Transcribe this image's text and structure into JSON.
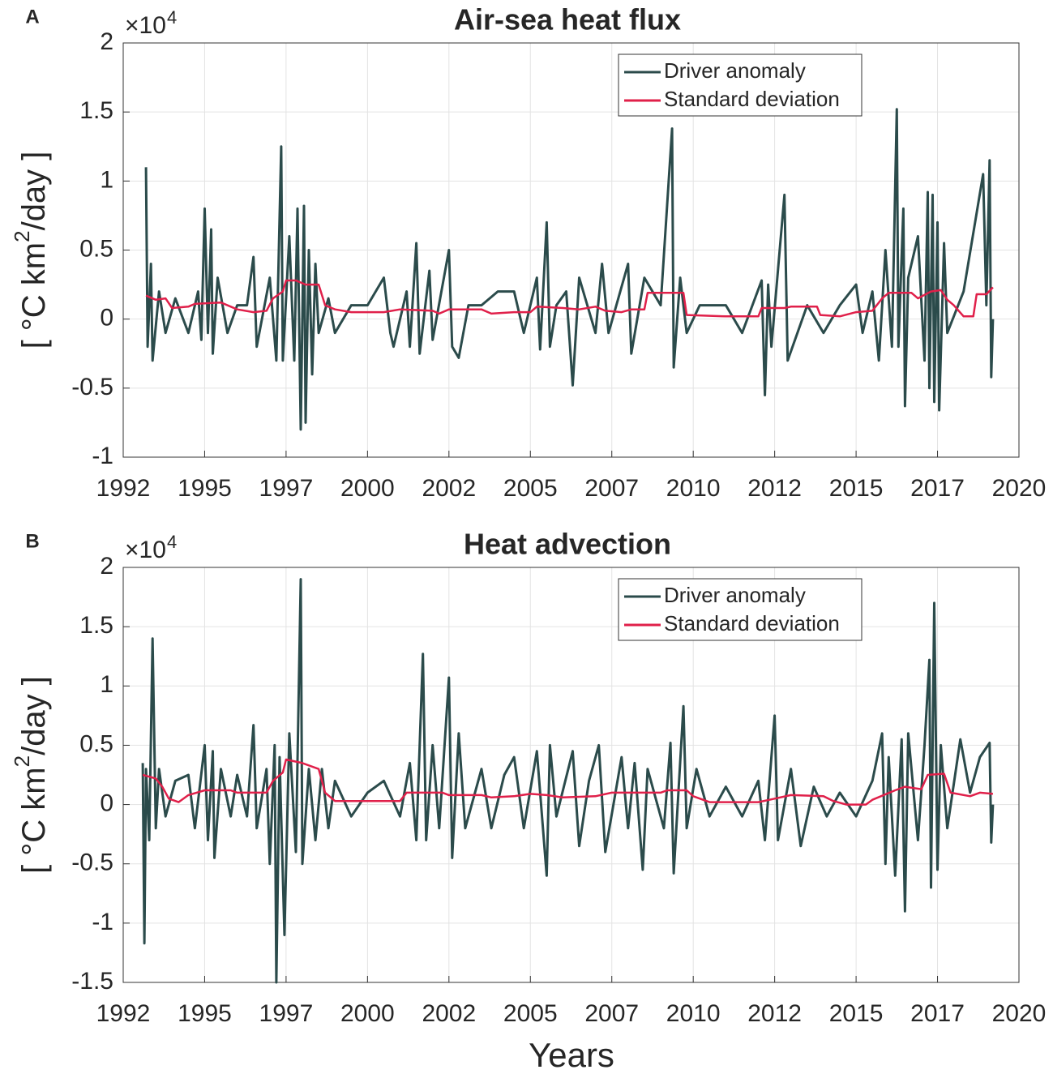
{
  "chart_data": [
    {
      "type": "line",
      "panel": "A",
      "title": "Air-sea heat flux",
      "y_multiplier": "×10",
      "y_exponent": "4",
      "ylabel": [
        "[ °C km",
        "2",
        "/day ]"
      ],
      "xlim": [
        1992,
        2019.5
      ],
      "xticks": [
        1992,
        {
          "value": 1994.5,
          "label": "1995"
        },
        1997,
        {
          "value": 1999.5,
          "label": "2000"
        },
        2002,
        {
          "value": 2004.5,
          "label": "2005"
        },
        2007,
        {
          "value": 2009.5,
          "label": "2010"
        },
        2012,
        {
          "value": 2014.5,
          "label": "2015"
        },
        2017,
        {
          "value": 2019.5,
          "label": "2020"
        }
      ],
      "ylim": [
        -1,
        2
      ],
      "yticks": [
        -1,
        -0.5,
        0,
        0.5,
        1,
        1.5,
        2
      ],
      "grid": true,
      "legend": "north east",
      "series": [
        {
          "name": "Driver anomaly",
          "color": "#2b4b4b",
          "x": [
            1992.7,
            1992.75,
            1992.85,
            1992.9,
            1993.1,
            1993.3,
            1993.6,
            1994.0,
            1994.3,
            1994.4,
            1994.5,
            1994.6,
            1994.7,
            1994.75,
            1994.9,
            1995.2,
            1995.5,
            1995.8,
            1996.0,
            1996.1,
            1996.5,
            1996.7,
            1996.85,
            1996.9,
            1997.1,
            1997.25,
            1997.35,
            1997.45,
            1997.55,
            1997.6,
            1997.7,
            1997.8,
            1997.9,
            1998.0,
            1998.3,
            1998.5,
            1999.0,
            1999.5,
            2000.0,
            2000.2,
            2000.3,
            2000.7,
            2000.8,
            2001.0,
            2001.1,
            2001.4,
            2001.5,
            2002.0,
            2002.1,
            2002.3,
            2002.6,
            2003.0,
            2003.5,
            2004.0,
            2004.3,
            2004.7,
            2004.8,
            2005.0,
            2005.1,
            2005.3,
            2005.6,
            2005.8,
            2006.0,
            2006.5,
            2006.7,
            2006.9,
            2007.5,
            2007.6,
            2008.0,
            2008.5,
            2008.85,
            2008.9,
            2009.1,
            2009.3,
            2009.7,
            2010.5,
            2011.0,
            2011.6,
            2011.7,
            2011.8,
            2011.9,
            2012.3,
            2012.4,
            2013.0,
            2013.5,
            2014.0,
            2014.5,
            2014.7,
            2015.0,
            2015.2,
            2015.4,
            2015.6,
            2015.75,
            2015.8,
            2015.95,
            2016.0,
            2016.1,
            2016.4,
            2016.6,
            2016.7,
            2016.75,
            2016.85,
            2016.9,
            2017.0,
            2017.05,
            2017.2,
            2017.3,
            2017.8,
            2018.4,
            2018.5,
            2018.6,
            2018.65,
            2018.7
          ],
          "values": [
            1.1,
            -0.2,
            0.4,
            -0.3,
            0.2,
            -0.1,
            0.15,
            -0.1,
            0.2,
            -0.15,
            0.8,
            -0.1,
            0.65,
            -0.25,
            0.3,
            -0.1,
            0.1,
            0.1,
            0.45,
            -0.2,
            0.3,
            -0.3,
            1.25,
            -0.3,
            0.6,
            -0.3,
            0.8,
            -0.8,
            0.82,
            -0.75,
            0.5,
            -0.4,
            0.4,
            -0.1,
            0.15,
            -0.1,
            0.1,
            0.1,
            0.3,
            -0.1,
            -0.2,
            0.2,
            -0.2,
            0.55,
            -0.25,
            0.35,
            -0.15,
            0.5,
            -0.2,
            -0.28,
            0.1,
            0.1,
            0.2,
            0.2,
            -0.1,
            0.3,
            -0.22,
            0.7,
            -0.2,
            0.1,
            0.2,
            -0.48,
            0.3,
            -0.1,
            0.4,
            -0.1,
            0.4,
            -0.25,
            0.3,
            0.1,
            1.38,
            -0.35,
            0.3,
            -0.1,
            0.1,
            0.1,
            -0.1,
            0.28,
            -0.55,
            0.25,
            -0.2,
            0.9,
            -0.3,
            0.1,
            -0.1,
            0.1,
            0.25,
            -0.1,
            0.2,
            -0.3,
            0.5,
            -0.2,
            1.52,
            -0.2,
            0.8,
            -0.63,
            0.3,
            0.6,
            -0.3,
            0.92,
            -0.5,
            0.9,
            -0.6,
            0.7,
            -0.66,
            0.55,
            -0.1,
            0.2,
            1.05,
            0.1,
            1.15,
            -0.42,
            0
          ]
        },
        {
          "name": "Standard deviation",
          "color": "#e0204a",
          "x": [
            1992.7,
            1993.0,
            1993.3,
            1993.5,
            1994.0,
            1994.2,
            1995.0,
            1995.5,
            1996.0,
            1996.4,
            1996.6,
            1996.9,
            1997.0,
            1997.3,
            1997.6,
            1998.0,
            1998.2,
            1998.5,
            1999.0,
            2000.0,
            2000.5,
            2001.5,
            2001.7,
            2002.0,
            2003.0,
            2003.3,
            2004.0,
            2004.5,
            2004.7,
            2005.5,
            2006.0,
            2006.5,
            2006.8,
            2007.3,
            2007.6,
            2008.0,
            2008.1,
            2009.2,
            2009.3,
            2010.5,
            2011.5,
            2011.6,
            2012.3,
            2012.5,
            2013.3,
            2013.4,
            2014.0,
            2014.5,
            2015.0,
            2015.3,
            2015.5,
            2016.2,
            2016.4,
            2016.8,
            2017.1,
            2017.3,
            2017.5,
            2017.8,
            2018.1,
            2018.2,
            2018.5,
            2018.7
          ],
          "values": [
            0.17,
            0.14,
            0.15,
            0.08,
            0.09,
            0.11,
            0.12,
            0.07,
            0.05,
            0.06,
            0.15,
            0.2,
            0.28,
            0.28,
            0.25,
            0.25,
            0.1,
            0.07,
            0.05,
            0.05,
            0.07,
            0.06,
            0.04,
            0.07,
            0.07,
            0.04,
            0.05,
            0.05,
            0.09,
            0.08,
            0.07,
            0.09,
            0.06,
            0.05,
            0.07,
            0.07,
            0.19,
            0.19,
            0.03,
            0.02,
            0.02,
            0.08,
            0.08,
            0.09,
            0.09,
            0.03,
            0.02,
            0.05,
            0.06,
            0.15,
            0.19,
            0.19,
            0.15,
            0.2,
            0.21,
            0.14,
            0.1,
            0.02,
            0.02,
            0.18,
            0.18,
            0.23
          ]
        }
      ]
    },
    {
      "type": "line",
      "panel": "B",
      "title": "Heat advection",
      "y_multiplier": "×10",
      "y_exponent": "4",
      "ylabel": [
        "[ °C km",
        "2",
        "/day ]"
      ],
      "x_label": "Years",
      "xlim": [
        1992,
        2019.5
      ],
      "xticks": [
        1992,
        {
          "value": 1994.5,
          "label": "1995"
        },
        1997,
        {
          "value": 1999.5,
          "label": "2000"
        },
        2002,
        {
          "value": 2004.5,
          "label": "2005"
        },
        2007,
        {
          "value": 2009.5,
          "label": "2010"
        },
        2012,
        {
          "value": 2014.5,
          "label": "2015"
        },
        2017,
        {
          "value": 2019.5,
          "label": "2020"
        }
      ],
      "ylim": [
        -1.5,
        2
      ],
      "yticks": [
        -1.5,
        -1,
        -0.5,
        0,
        0.5,
        1,
        1.5,
        2
      ],
      "grid": true,
      "legend": "north east",
      "series": [
        {
          "name": "Driver anomaly",
          "color": "#2b4b4b",
          "x": [
            1992.6,
            1992.65,
            1992.7,
            1992.8,
            1992.9,
            1993.0,
            1993.1,
            1993.3,
            1993.6,
            1994.0,
            1994.2,
            1994.5,
            1994.6,
            1994.75,
            1994.8,
            1995.0,
            1995.3,
            1995.5,
            1995.8,
            1996.0,
            1996.1,
            1996.4,
            1996.5,
            1996.65,
            1996.7,
            1996.8,
            1996.95,
            1997.1,
            1997.3,
            1997.45,
            1997.5,
            1997.7,
            1997.9,
            1998.1,
            1998.3,
            1998.5,
            1999.0,
            1999.5,
            2000.0,
            2000.5,
            2000.8,
            2001.0,
            2001.2,
            2001.3,
            2001.5,
            2001.7,
            2002.0,
            2002.1,
            2002.3,
            2002.5,
            2003.0,
            2003.3,
            2003.7,
            2004.0,
            2004.3,
            2004.7,
            2005.0,
            2005.1,
            2005.3,
            2005.8,
            2006.0,
            2006.3,
            2006.6,
            2006.8,
            2007.3,
            2007.5,
            2007.7,
            2007.95,
            2008.1,
            2008.6,
            2008.8,
            2008.9,
            2009.2,
            2009.3,
            2009.6,
            2010.0,
            2010.5,
            2011.0,
            2011.5,
            2011.7,
            2012.0,
            2012.1,
            2012.5,
            2012.8,
            2013.2,
            2013.6,
            2014.0,
            2014.5,
            2015.0,
            2015.3,
            2015.4,
            2015.5,
            2015.7,
            2015.9,
            2016.0,
            2016.1,
            2016.4,
            2016.6,
            2016.75,
            2016.8,
            2016.9,
            2017.0,
            2017.1,
            2017.3,
            2017.7,
            2018.0,
            2018.3,
            2018.6,
            2018.65,
            2018.7
          ],
          "values": [
            0.35,
            -1.17,
            0.3,
            -0.3,
            1.4,
            -0.2,
            0.3,
            -0.1,
            0.2,
            0.25,
            -0.2,
            0.5,
            -0.3,
            0.45,
            -0.45,
            0.3,
            -0.1,
            0.25,
            -0.1,
            0.67,
            -0.2,
            0.3,
            -0.5,
            0.5,
            -1.5,
            0.4,
            -1.1,
            0.6,
            -0.4,
            1.9,
            -0.5,
            0.3,
            -0.3,
            0.3,
            -0.2,
            0.2,
            -0.1,
            0.1,
            0.2,
            -0.1,
            0.35,
            -0.3,
            1.27,
            -0.3,
            0.5,
            -0.2,
            1.07,
            -0.45,
            0.6,
            -0.2,
            0.3,
            -0.2,
            0.25,
            0.4,
            -0.2,
            0.45,
            -0.6,
            0.5,
            -0.1,
            0.45,
            -0.35,
            0.2,
            0.5,
            -0.4,
            0.4,
            -0.2,
            0.35,
            -0.55,
            0.3,
            -0.2,
            0.52,
            -0.58,
            0.83,
            -0.2,
            0.3,
            -0.1,
            0.15,
            -0.1,
            0.2,
            -0.3,
            0.75,
            -0.3,
            0.3,
            -0.35,
            0.15,
            -0.1,
            0.1,
            -0.1,
            0.2,
            0.6,
            -0.5,
            0.4,
            -0.6,
            0.55,
            -0.9,
            0.6,
            -0.3,
            0.5,
            1.22,
            -0.7,
            1.7,
            -0.55,
            0.5,
            -0.2,
            0.55,
            0.1,
            0.4,
            0.52,
            -0.32,
            0
          ]
        },
        {
          "name": "Standard deviation",
          "color": "#e0204a",
          "x": [
            1992.6,
            1993.0,
            1993.2,
            1993.4,
            1993.7,
            1994.0,
            1994.5,
            1995.3,
            1995.5,
            1996.4,
            1996.6,
            1996.9,
            1997.0,
            1997.5,
            1998.0,
            1998.2,
            1998.5,
            2000.5,
            2000.7,
            2001.8,
            2002.0,
            2003.0,
            2003.3,
            2004.0,
            2004.5,
            2005.0,
            2005.5,
            2006.5,
            2007.0,
            2008.5,
            2008.7,
            2009.3,
            2009.5,
            2010.0,
            2011.5,
            2012.0,
            2012.5,
            2013.5,
            2013.8,
            2014.2,
            2014.8,
            2015.0,
            2015.7,
            2016.0,
            2016.5,
            2016.7,
            2017.2,
            2017.4,
            2018.0,
            2018.3,
            2018.7
          ],
          "values": [
            0.25,
            0.22,
            0.15,
            0.05,
            0.02,
            0.08,
            0.12,
            0.12,
            0.1,
            0.1,
            0.2,
            0.27,
            0.38,
            0.35,
            0.3,
            0.1,
            0.03,
            0.03,
            0.1,
            0.1,
            0.08,
            0.08,
            0.06,
            0.07,
            0.09,
            0.08,
            0.06,
            0.07,
            0.1,
            0.1,
            0.12,
            0.12,
            0.07,
            0.02,
            0.02,
            0.05,
            0.08,
            0.07,
            0.03,
            0,
            0,
            0.04,
            0.12,
            0.15,
            0.13,
            0.25,
            0.26,
            0.1,
            0.07,
            0.1,
            0.09
          ]
        }
      ]
    }
  ]
}
